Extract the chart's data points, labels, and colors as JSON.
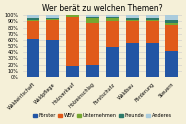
{
  "title": "Wer berät zu welchen Themen?",
  "categories": [
    "Waldwirtschaft",
    "Waldpflege",
    "Holzverkauf",
    "Holzeinschlag",
    "Forstschutz",
    "Waldbau",
    "Förderung",
    "Steuern"
  ],
  "series": {
    "Förster": [
      62,
      60,
      18,
      20,
      48,
      55,
      55,
      42
    ],
    "WBV": [
      28,
      32,
      80,
      68,
      42,
      35,
      35,
      42
    ],
    "Unternehmen": [
      2,
      2,
      2,
      8,
      5,
      2,
      2,
      4
    ],
    "Freunde": [
      3,
      2,
      0,
      2,
      2,
      3,
      3,
      5
    ],
    "Anderes": [
      5,
      4,
      0,
      2,
      3,
      5,
      5,
      7
    ]
  },
  "colors": {
    "Förster": "#2255a4",
    "WBV": "#e05a1a",
    "Unternehmen": "#76a832",
    "Freunde": "#2d7a6a",
    "Anderes": "#aaccdd"
  },
  "ylim": [
    0,
    100
  ],
  "yticks": [
    0,
    10,
    20,
    30,
    40,
    50,
    60,
    70,
    80,
    90,
    100
  ],
  "ylabel_format": "{}%",
  "background_color": "#f5f0d8",
  "grid_color": "#cccccc",
  "title_fontsize": 5.5,
  "tick_fontsize": 3.5,
  "legend_fontsize": 3.5
}
